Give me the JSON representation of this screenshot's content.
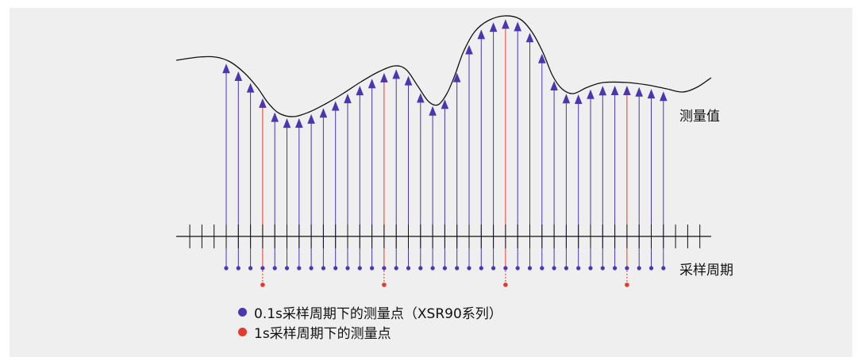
{
  "labels": {
    "measured_value": "测量值",
    "sampling_period": "采样周期"
  },
  "legend": [
    {
      "text": "0.1s采样周期下的测量点（XSR90系列）",
      "color": "#4b35b0"
    },
    {
      "text": "1s采样周期下的测量点",
      "color": "#e23b2e"
    }
  ],
  "colors": {
    "fast_sample": "#4b35b0",
    "slow_sample": "#e23b2e",
    "curve": "#111111",
    "panel_background": "#efefef"
  }
}
